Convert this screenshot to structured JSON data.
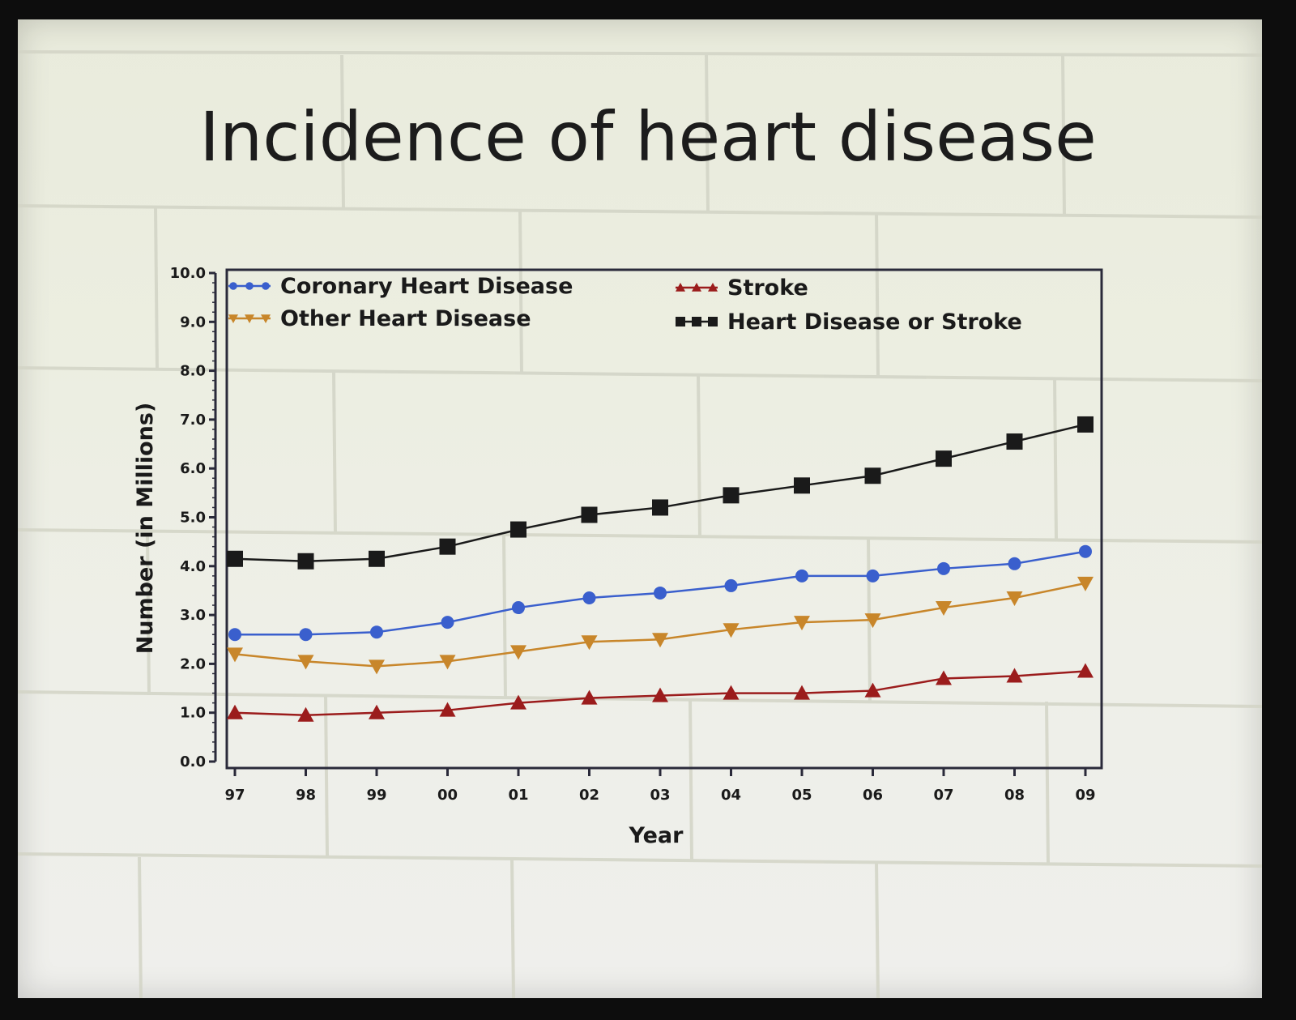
{
  "slide": {
    "title": "Incidence of heart disease"
  },
  "chart_data": {
    "type": "line",
    "title": "",
    "xlabel": "Year",
    "ylabel": "Number (in Millions)",
    "ylim": [
      0,
      10
    ],
    "yticks": [
      "0.0",
      "1.0",
      "2.0",
      "3.0",
      "4.0",
      "5.0",
      "6.0",
      "7.0",
      "8.0",
      "9.0",
      "10.0"
    ],
    "categories": [
      "97",
      "98",
      "99",
      "00",
      "01",
      "02",
      "03",
      "04",
      "05",
      "06",
      "07",
      "08",
      "09"
    ],
    "legend_position": "top",
    "series": [
      {
        "name": "Coronary Heart Disease",
        "color": "#3a5fcd",
        "marker": "circle",
        "values": [
          2.6,
          2.6,
          2.65,
          2.85,
          3.15,
          3.35,
          3.45,
          3.6,
          3.8,
          3.8,
          3.95,
          4.05,
          4.3
        ]
      },
      {
        "name": "Other Heart Disease",
        "color": "#c8862a",
        "marker": "triangle-down",
        "values": [
          2.2,
          2.05,
          1.95,
          2.05,
          2.25,
          2.45,
          2.5,
          2.7,
          2.85,
          2.9,
          3.15,
          3.35,
          3.65
        ]
      },
      {
        "name": "Stroke",
        "color": "#9b1c1c",
        "marker": "triangle-up",
        "values": [
          1.0,
          0.95,
          1.0,
          1.05,
          1.2,
          1.3,
          1.35,
          1.4,
          1.4,
          1.45,
          1.7,
          1.75,
          1.85
        ]
      },
      {
        "name": "Heart Disease or Stroke",
        "color": "#1a1a1a",
        "marker": "square",
        "values": [
          4.15,
          4.1,
          4.15,
          4.4,
          4.75,
          5.05,
          5.2,
          5.45,
          5.65,
          5.85,
          6.2,
          6.55,
          6.9
        ]
      }
    ]
  }
}
